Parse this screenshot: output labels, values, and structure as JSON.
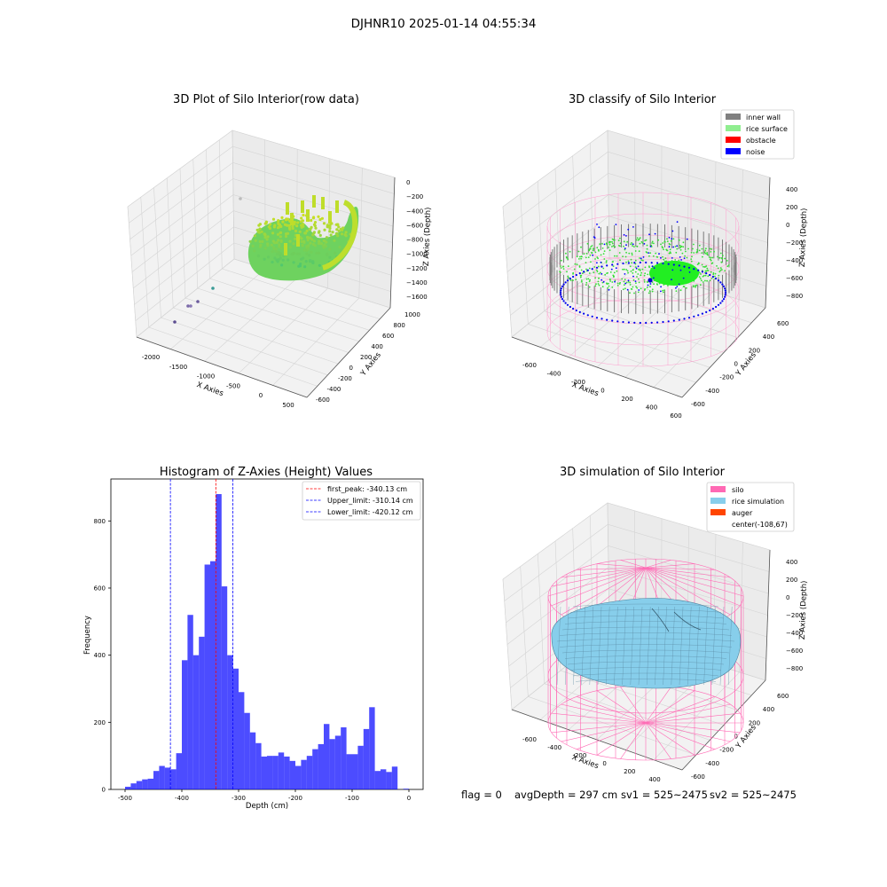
{
  "suptitle": "DJHNR10 2025-01-14 04:55:34",
  "footer": {
    "flag": "flag = 0",
    "avg_depth": "avgDepth = 297 cm",
    "sv1": "sv1 = 525~2475",
    "sv2": "sv2 = 525~2475"
  },
  "panels": {
    "raw": {
      "title": "3D Plot of Silo Interior(row data)",
      "xlabel": "X Axies",
      "ylabel": "Y Axies",
      "zlabel": "Z Axies (Depth)",
      "xticks": [
        "-2000",
        "-1500",
        "-1000",
        "-500",
        "0",
        "500"
      ],
      "yticks": [
        "-600",
        "-400",
        "-200",
        "0",
        "200",
        "400",
        "600",
        "800",
        "1000"
      ],
      "zticks": [
        "0",
        "−200",
        "−400",
        "−600",
        "−800",
        "−1000",
        "−1200",
        "−1400",
        "−1600"
      ]
    },
    "classify": {
      "title": "3D classify of Silo Interior",
      "xlabel": "X Axies",
      "ylabel": "Y Axies",
      "zlabel": "Z Axies (Depth)",
      "xticks": [
        "-600",
        "-400",
        "-200",
        "0",
        "200",
        "400",
        "600"
      ],
      "yticks": [
        "-600",
        "-400",
        "-200",
        "0",
        "200",
        "400",
        "600"
      ],
      "zticks": [
        "400",
        "200",
        "0",
        "−200",
        "−400",
        "−600",
        "−800"
      ],
      "legend": [
        {
          "label": "inner wall",
          "color": "#808080"
        },
        {
          "label": "rice surface",
          "color": "#90ee90"
        },
        {
          "label": "obstacle",
          "color": "#ff0000"
        },
        {
          "label": "noise",
          "color": "#0000ff"
        }
      ]
    },
    "simulation": {
      "title": "3D simulation of Silo Interior",
      "xlabel": "X Axies",
      "ylabel": "Y Axies",
      "zlabel": "Z Axies (Depth)",
      "xticks": [
        "-600",
        "-400",
        "-200",
        "0",
        "200",
        "400"
      ],
      "yticks": [
        "-600",
        "-400",
        "-200",
        "0",
        "200",
        "400",
        "600"
      ],
      "zticks": [
        "400",
        "200",
        "0",
        "−200",
        "−400",
        "−600",
        "−800"
      ],
      "legend": [
        {
          "label": "silo",
          "color": "#ff69b4"
        },
        {
          "label": "rice simulation",
          "color": "#87ceeb"
        },
        {
          "label": "auger",
          "color": "#ff4500"
        },
        {
          "label": "center(-108,67)",
          "color": ""
        }
      ]
    }
  },
  "chart_data": {
    "type": "bar",
    "title": "Histogram of Z-Axies (Height) Values",
    "xlabel": "Depth (cm)",
    "ylabel": "Frequency",
    "xlim": [
      -525,
      25
    ],
    "ylim": [
      0,
      925
    ],
    "xticks": [
      -500,
      -400,
      -300,
      -200,
      -100,
      0
    ],
    "yticks": [
      0,
      200,
      400,
      600,
      800
    ],
    "bar_color": "#0000ff",
    "bin_width": 10,
    "bin_starts": [
      -500,
      -490,
      -480,
      -470,
      -460,
      -450,
      -440,
      -430,
      -420,
      -410,
      -400,
      -390,
      -380,
      -370,
      -360,
      -350,
      -340,
      -330,
      -320,
      -310,
      -300,
      -290,
      -280,
      -270,
      -260,
      -250,
      -240,
      -230,
      -220,
      -210,
      -200,
      -190,
      -180,
      -170,
      -160,
      -150,
      -140,
      -130,
      -120,
      -110,
      -100,
      -90,
      -80,
      -70,
      -60,
      -50,
      -40,
      -30,
      -20,
      -10
    ],
    "values": [
      8,
      18,
      25,
      30,
      32,
      55,
      70,
      65,
      60,
      108,
      385,
      520,
      400,
      455,
      670,
      680,
      880,
      605,
      400,
      360,
      290,
      228,
      170,
      138,
      98,
      100,
      100,
      110,
      98,
      85,
      70,
      88,
      100,
      120,
      135,
      195,
      150,
      160,
      185,
      105,
      105,
      130,
      180,
      245,
      55,
      60,
      52,
      68,
      0,
      2
    ],
    "vlines": [
      {
        "name": "first_peak: -340.13 cm",
        "x": -340.13,
        "color": "#ff0000"
      },
      {
        "name": "Upper_limit: -310.14 cm",
        "x": -310.14,
        "color": "#0000ff"
      },
      {
        "name": "Lower_limit: -420.12 cm",
        "x": -420.12,
        "color": "#0000ff"
      }
    ],
    "legend_position": "top-right"
  }
}
